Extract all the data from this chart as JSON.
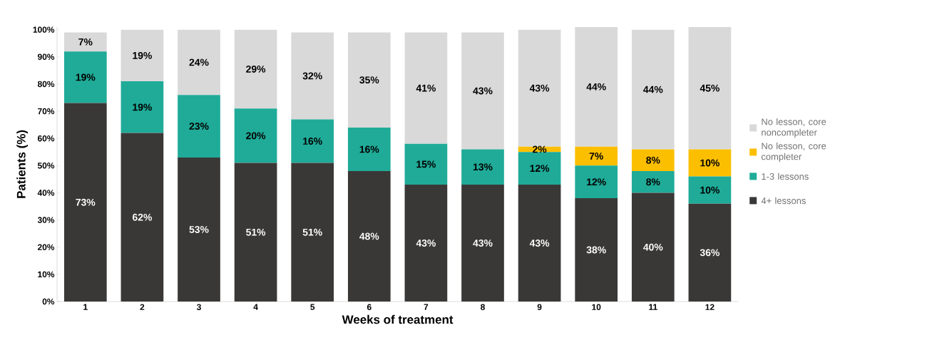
{
  "chart_data": {
    "type": "bar",
    "stacked": true,
    "xlabel": "Weeks of treatment",
    "ylabel": "Patients (%)",
    "categories": [
      "1",
      "2",
      "3",
      "4",
      "5",
      "6",
      "7",
      "8",
      "9",
      "10",
      "11",
      "12"
    ],
    "ylim": [
      0,
      101
    ],
    "yticks": [
      {
        "value": 0,
        "label": "0%"
      },
      {
        "value": 10,
        "label": "10%"
      },
      {
        "value": 20,
        "label": "20%"
      },
      {
        "value": 30,
        "label": "30%"
      },
      {
        "value": 40,
        "label": "40%"
      },
      {
        "value": 50,
        "label": "50%"
      },
      {
        "value": 60,
        "label": "60%"
      },
      {
        "value": 70,
        "label": "70%"
      },
      {
        "value": 80,
        "label": "80%"
      },
      {
        "value": 90,
        "label": "90%"
      },
      {
        "value": 100,
        "label": "100%"
      }
    ],
    "legend": "right",
    "series": [
      {
        "name": "4+ lessons",
        "color": "#3a3837",
        "values": [
          73,
          62,
          53,
          51,
          51,
          48,
          43,
          43,
          43,
          38,
          40,
          36
        ],
        "value_labels": [
          "73%",
          "62%",
          "53%",
          "51%",
          "51%",
          "48%",
          "43%",
          "43%",
          "43%",
          "38%",
          "40%",
          "36%"
        ]
      },
      {
        "name": "1-3 lessons",
        "color": "#1fab98",
        "values": [
          19,
          19,
          23,
          20,
          16,
          16,
          15,
          13,
          12,
          12,
          8,
          10
        ],
        "value_labels": [
          "19%",
          "19%",
          "23%",
          "20%",
          "16%",
          "16%",
          "15%",
          "13%",
          "12%",
          "12%",
          "8%",
          "10%"
        ]
      },
      {
        "name": "No lesson, core completer",
        "color": "#fbbf00",
        "values": [
          0,
          0,
          0,
          0,
          0,
          0,
          0,
          0,
          2,
          7,
          8,
          10
        ],
        "value_labels": [
          null,
          null,
          null,
          null,
          null,
          null,
          null,
          null,
          "2%",
          "7%",
          "8%",
          "10%"
        ]
      },
      {
        "name": "No lesson, core noncompleter",
        "color": "#d9d9d9",
        "values": [
          7,
          19,
          24,
          29,
          32,
          35,
          41,
          43,
          43,
          44,
          44,
          45
        ],
        "value_labels": [
          "7%",
          "19%",
          "24%",
          "29%",
          "32%",
          "35%",
          "41%",
          "43%",
          "43%",
          "44%",
          "44%",
          "45%"
        ]
      }
    ]
  }
}
